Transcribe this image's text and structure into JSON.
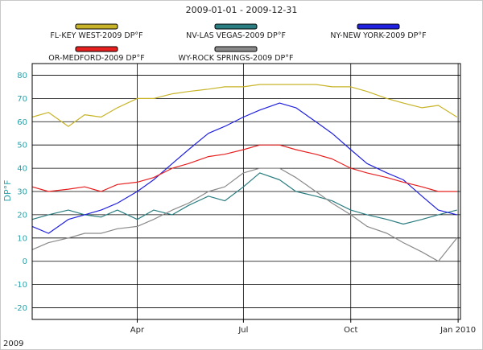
{
  "chart_data": {
    "type": "line",
    "title": "2009-01-01 - 2009-12-31",
    "ylabel": "DP°F",
    "ylim": [
      -25,
      85
    ],
    "yticks": [
      -20,
      -10,
      0,
      10,
      20,
      30,
      40,
      50,
      60,
      70,
      80
    ],
    "xlim": [
      "2009-01-01",
      "2010-01-03"
    ],
    "xticks": [
      {
        "date": "2009-04-01",
        "label": "Apr"
      },
      {
        "date": "2009-07-01",
        "label": "Jul"
      },
      {
        "date": "2009-10-01",
        "label": "Oct"
      },
      {
        "date": "2010-01-01",
        "label": "Jan 2010"
      }
    ],
    "x_year_label": "2009",
    "grid": true,
    "legend_position": "top",
    "series": [
      {
        "name": "FL-KEY WEST-2009  DP°F",
        "color": "#c8b428",
        "x": [
          "2009-01-01",
          "2009-01-15",
          "2009-02-01",
          "2009-02-15",
          "2009-03-01",
          "2009-03-15",
          "2009-04-01",
          "2009-04-15",
          "2009-05-01",
          "2009-05-15",
          "2009-06-01",
          "2009-06-15",
          "2009-07-01",
          "2009-07-15",
          "2009-08-01",
          "2009-08-15",
          "2009-09-01",
          "2009-09-15",
          "2009-10-01",
          "2009-10-15",
          "2009-11-01",
          "2009-11-15",
          "2009-12-01",
          "2009-12-15",
          "2009-12-31"
        ],
        "values": [
          62,
          64,
          58,
          63,
          62,
          66,
          70,
          70,
          72,
          73,
          74,
          75,
          75,
          76,
          76,
          76,
          76,
          75,
          75,
          73,
          70,
          68,
          66,
          67,
          62
        ]
      },
      {
        "name": "NV-LAS VEGAS-2009  DP°F",
        "color": "#2a7d80",
        "x": [
          "2009-01-01",
          "2009-01-15",
          "2009-02-01",
          "2009-02-15",
          "2009-03-01",
          "2009-03-15",
          "2009-04-01",
          "2009-04-15",
          "2009-05-01",
          "2009-05-15",
          "2009-06-01",
          "2009-06-15",
          "2009-07-01",
          "2009-07-15",
          "2009-08-01",
          "2009-08-15",
          "2009-09-01",
          "2009-09-15",
          "2009-10-01",
          "2009-10-15",
          "2009-11-01",
          "2009-11-15",
          "2009-12-01",
          "2009-12-15",
          "2009-12-31"
        ],
        "values": [
          18,
          20,
          22,
          20,
          19,
          22,
          18,
          22,
          20,
          24,
          28,
          26,
          32,
          38,
          35,
          30,
          28,
          26,
          22,
          20,
          18,
          16,
          18,
          20,
          22
        ]
      },
      {
        "name": "NY-NEW YORK-2009  DP°F",
        "color": "#2020e0",
        "x": [
          "2009-01-01",
          "2009-01-15",
          "2009-02-01",
          "2009-02-15",
          "2009-03-01",
          "2009-03-15",
          "2009-04-01",
          "2009-04-15",
          "2009-05-01",
          "2009-05-15",
          "2009-06-01",
          "2009-06-15",
          "2009-07-01",
          "2009-07-15",
          "2009-08-01",
          "2009-08-15",
          "2009-09-01",
          "2009-09-15",
          "2009-10-01",
          "2009-10-15",
          "2009-11-01",
          "2009-11-15",
          "2009-12-01",
          "2009-12-15",
          "2009-12-31"
        ],
        "values": [
          15,
          12,
          18,
          20,
          22,
          25,
          30,
          35,
          42,
          48,
          55,
          58,
          62,
          65,
          68,
          66,
          60,
          55,
          48,
          42,
          38,
          35,
          28,
          22,
          20
        ]
      },
      {
        "name": "OR-MEDFORD-2009  DP°F",
        "color": "#e82020",
        "x": [
          "2009-01-01",
          "2009-01-15",
          "2009-02-01",
          "2009-02-15",
          "2009-03-01",
          "2009-03-15",
          "2009-04-01",
          "2009-04-15",
          "2009-05-01",
          "2009-05-15",
          "2009-06-01",
          "2009-06-15",
          "2009-07-01",
          "2009-07-15",
          "2009-08-01",
          "2009-08-15",
          "2009-09-01",
          "2009-09-15",
          "2009-10-01",
          "2009-10-15",
          "2009-11-01",
          "2009-11-15",
          "2009-12-01",
          "2009-12-15",
          "2009-12-31"
        ],
        "values": [
          32,
          30,
          31,
          32,
          30,
          33,
          34,
          36,
          40,
          42,
          45,
          46,
          48,
          50,
          50,
          48,
          46,
          44,
          40,
          38,
          36,
          34,
          32,
          30,
          30
        ]
      },
      {
        "name": "WY-ROCK SPRINGS-2009  DP°F",
        "color": "#8a8a8a",
        "x": [
          "2009-01-01",
          "2009-01-15",
          "2009-02-01",
          "2009-02-15",
          "2009-03-01",
          "2009-03-15",
          "2009-04-01",
          "2009-04-15",
          "2009-05-01",
          "2009-05-15",
          "2009-06-01",
          "2009-06-15",
          "2009-07-01",
          "2009-07-15",
          "2009-08-01",
          "2009-08-15",
          "2009-09-01",
          "2009-09-15",
          "2009-10-01",
          "2009-10-15",
          "2009-11-01",
          "2009-11-15",
          "2009-12-01",
          "2009-12-15",
          "2009-12-31"
        ],
        "values": [
          5,
          8,
          10,
          12,
          12,
          14,
          15,
          18,
          22,
          25,
          30,
          32,
          38,
          40,
          40,
          36,
          30,
          25,
          20,
          15,
          12,
          8,
          4,
          0,
          10
        ]
      }
    ]
  }
}
